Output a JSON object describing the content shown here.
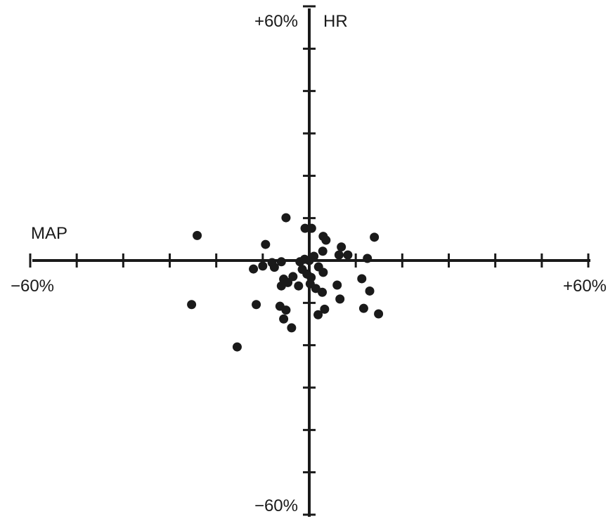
{
  "chart_data": {
    "type": "scatter",
    "title": "",
    "xlabel": "MAP",
    "ylabel": "HR",
    "xlim": [
      -60,
      60
    ],
    "ylim": [
      -60,
      60
    ],
    "x_tick_step": 10,
    "y_tick_step": 10,
    "tick_labels": {
      "x_min": "−60%",
      "x_max": "+60%",
      "y_min": "−60%",
      "y_max": "+60%"
    },
    "grid": false,
    "point_color": "#1a1a1a",
    "points": [
      {
        "x": -24.1,
        "y": 5.9
      },
      {
        "x": -25.3,
        "y": -10.4
      },
      {
        "x": -15.5,
        "y": -20.4
      },
      {
        "x": -5.0,
        "y": 10.1
      },
      {
        "x": -0.9,
        "y": 7.6
      },
      {
        "x": 0.5,
        "y": 7.6
      },
      {
        "x": 3.0,
        "y": 5.7
      },
      {
        "x": 3.6,
        "y": 4.8
      },
      {
        "x": 2.9,
        "y": 2.2
      },
      {
        "x": 6.9,
        "y": 3.2
      },
      {
        "x": 8.3,
        "y": 1.3
      },
      {
        "x": 6.4,
        "y": 1.3
      },
      {
        "x": 12.5,
        "y": 0.5
      },
      {
        "x": 14.0,
        "y": 5.5
      },
      {
        "x": -9.4,
        "y": 3.8
      },
      {
        "x": -12.0,
        "y": -2.0
      },
      {
        "x": -10.0,
        "y": -1.3
      },
      {
        "x": -8.0,
        "y": -0.5
      },
      {
        "x": -7.5,
        "y": -1.6
      },
      {
        "x": -6.0,
        "y": -0.3
      },
      {
        "x": -2.0,
        "y": -0.3
      },
      {
        "x": -1.0,
        "y": 0.3
      },
      {
        "x": 0.0,
        "y": 0.0
      },
      {
        "x": 1.0,
        "y": 1.0
      },
      {
        "x": 2.0,
        "y": -1.5
      },
      {
        "x": 3.0,
        "y": -2.8
      },
      {
        "x": -1.5,
        "y": -2.1
      },
      {
        "x": -0.5,
        "y": -3.2
      },
      {
        "x": 0.4,
        "y": -4.0
      },
      {
        "x": -3.5,
        "y": -3.8
      },
      {
        "x": -5.5,
        "y": -4.4
      },
      {
        "x": -6.0,
        "y": -6.0
      },
      {
        "x": -4.6,
        "y": -5.2
      },
      {
        "x": -2.3,
        "y": -6.0
      },
      {
        "x": 0.2,
        "y": -5.5
      },
      {
        "x": 1.4,
        "y": -6.6
      },
      {
        "x": 2.8,
        "y": -7.5
      },
      {
        "x": 6.0,
        "y": -5.8
      },
      {
        "x": 6.6,
        "y": -9.1
      },
      {
        "x": 11.3,
        "y": -4.3
      },
      {
        "x": 13.0,
        "y": -7.2
      },
      {
        "x": 11.7,
        "y": -11.3
      },
      {
        "x": 14.9,
        "y": -12.6
      },
      {
        "x": -11.4,
        "y": -10.4
      },
      {
        "x": -6.3,
        "y": -10.8
      },
      {
        "x": -5.0,
        "y": -11.7
      },
      {
        "x": -5.5,
        "y": -13.8
      },
      {
        "x": -3.8,
        "y": -15.9
      },
      {
        "x": 1.9,
        "y": -12.8
      },
      {
        "x": 3.3,
        "y": -11.5
      }
    ]
  }
}
